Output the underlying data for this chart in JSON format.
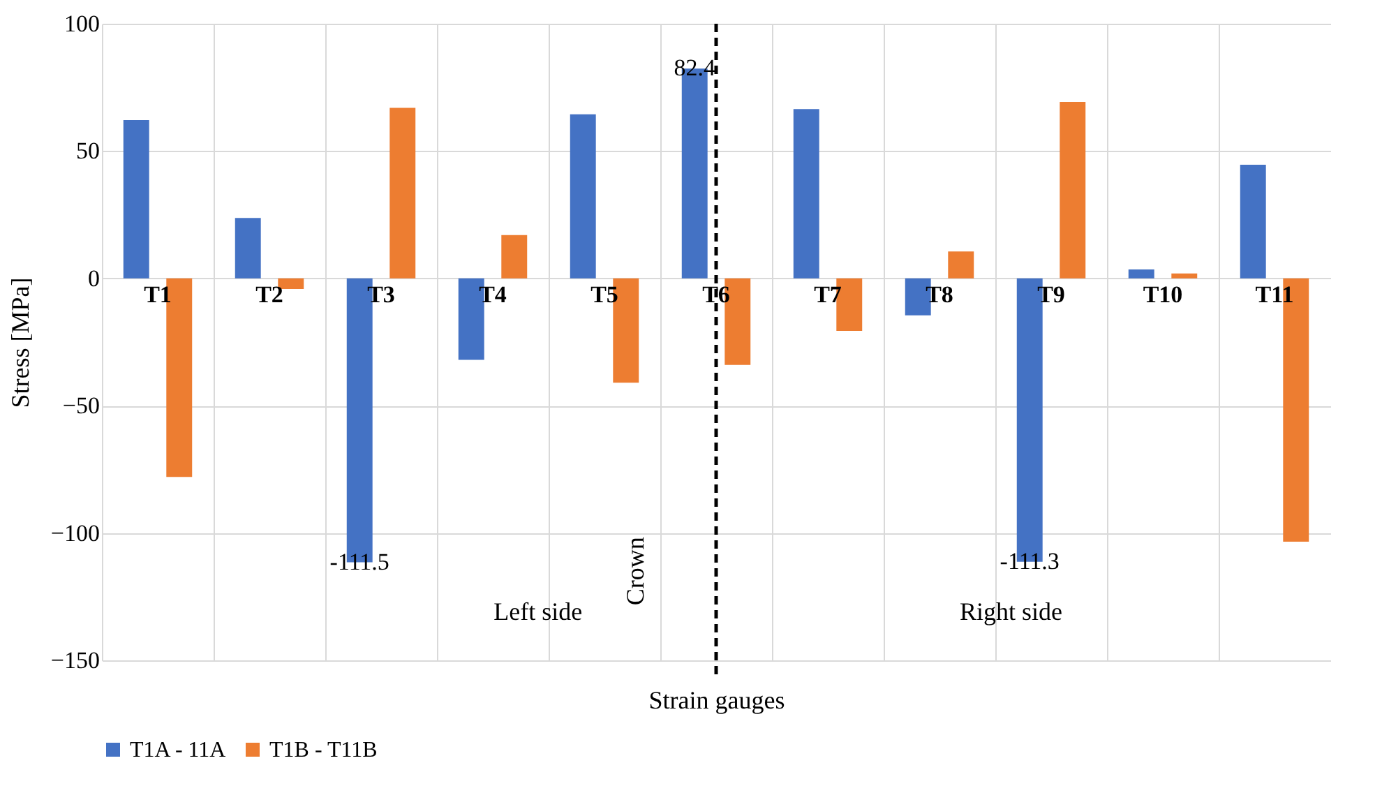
{
  "chart_data": {
    "type": "bar",
    "xlabel": "Strain gauges",
    "ylabel": "Stress [MPa]",
    "categories": [
      "T1",
      "T2",
      "T3",
      "T4",
      "T5",
      "T6",
      "T7",
      "T8",
      "T9",
      "T10",
      "T11"
    ],
    "series": [
      {
        "name": "T1A - 11A",
        "color": "#4472c4",
        "values": [
          62.2,
          23.7,
          -111.5,
          -32,
          64.4,
          82.4,
          66.5,
          -14.5,
          -111.3,
          3.5,
          44.6
        ],
        "value_labels": [
          null,
          null,
          "-111.5",
          null,
          null,
          "82.4",
          null,
          null,
          "-111.3",
          null,
          null
        ]
      },
      {
        "name": "T1B - T11B",
        "color": "#ed7d31",
        "values": [
          -78,
          -4.2,
          67,
          17,
          -41,
          -34,
          -20.6,
          10.6,
          69.3,
          1.9,
          -103.4
        ]
      }
    ],
    "ylim": [
      -150,
      100
    ],
    "yticks": [
      -150,
      -100,
      -50,
      0,
      50,
      100
    ],
    "grid": true,
    "legend": "bottom",
    "ref_lines": [
      {
        "axis": "x",
        "value": "T6",
        "label": "Crown",
        "color": "#000000",
        "line_style": "dashed"
      }
    ],
    "annotations": [
      "Left side",
      "Right side"
    ]
  }
}
